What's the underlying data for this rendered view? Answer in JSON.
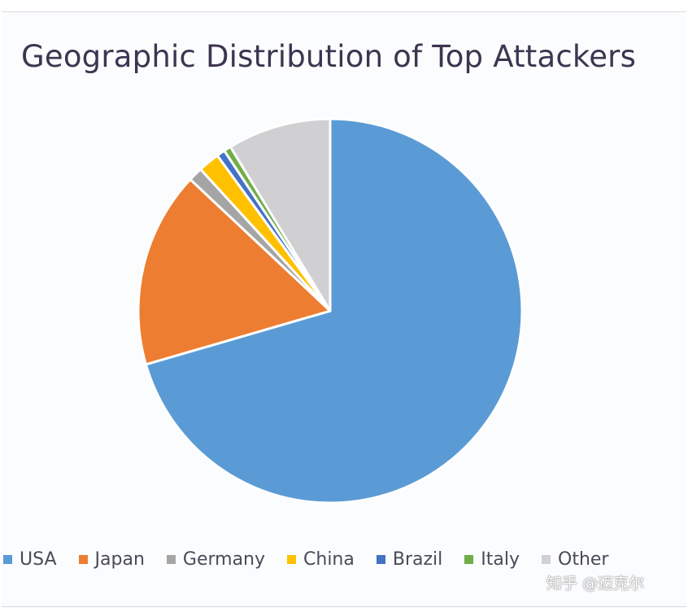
{
  "chart_data": {
    "type": "pie",
    "title": "Geographic Distribution of Top Attackers",
    "categories": [
      "USA",
      "Japan",
      "Germany",
      "China",
      "Brazil",
      "Italy",
      "Other"
    ],
    "values": [
      70.5,
      16.5,
      1.2,
      1.8,
      0.7,
      0.6,
      8.7
    ],
    "colors": [
      "#5b9bd5",
      "#ed7d31",
      "#a5a5a5",
      "#ffc000",
      "#4472c4",
      "#70ad47",
      "#d0d0d3"
    ],
    "legend_position": "bottom",
    "start_angle": "12 o'clock",
    "direction": "clockwise"
  },
  "watermark": "知乎 @迈克尔"
}
